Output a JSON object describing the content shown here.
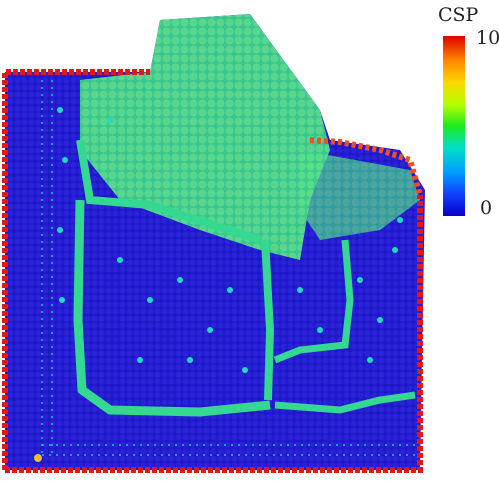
{
  "colorbar": {
    "title": "CSP",
    "max_label": "10",
    "min_label": "0",
    "colors": [
      "#e00000",
      "#ff8a00",
      "#ffd800",
      "#b4ff00",
      "#1eea1e",
      "#00e0c8",
      "#009cff",
      "#1040ff",
      "#0a00c8"
    ]
  },
  "scene": {
    "matrix_color": "#1a14c4",
    "surface_atom_color": "#e01010",
    "defect_atom_color": "#20e0b0",
    "grain_boundary_color": "#2ee07a"
  }
}
